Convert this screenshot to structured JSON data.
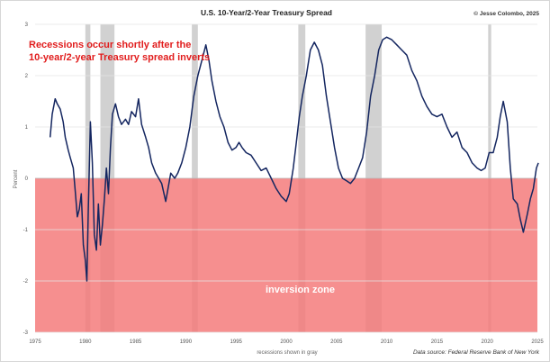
{
  "chart_data": {
    "type": "line",
    "title": "U.S. 10-Year/2-Year Treasury Spread",
    "credit": "© Jesse Colombo, 2025",
    "annotation": "Recessions occur shortly after the\n10-year/2-year Treasury spread inverts",
    "inversion_label": "inversion zone",
    "xlabel": "recessions shown in gray",
    "ylabel": "Percent",
    "source": "Data source: Federal Reserve Bank of New York",
    "xlim": [
      1975,
      2025
    ],
    "ylim": [
      -3,
      3
    ],
    "x_ticks": [
      "1975",
      "1980",
      "1985",
      "1990",
      "1995",
      "2000",
      "2005",
      "2010",
      "2015",
      "2020",
      "2025"
    ],
    "y_ticks": [
      "3",
      "2",
      "1",
      "0",
      "-1",
      "-2",
      "-3"
    ],
    "grid": true,
    "inversion_zone": [
      0,
      -3
    ],
    "recessions": [
      [
        1980.0,
        1980.5
      ],
      [
        1981.5,
        1982.9
      ],
      [
        1990.6,
        1991.2
      ],
      [
        2001.2,
        2001.9
      ],
      [
        2007.9,
        2009.5
      ],
      [
        2020.1,
        2020.4
      ]
    ],
    "series": [
      {
        "color": "#142660",
        "x": [
          1976.5,
          1976.7,
          1977.0,
          1977.2,
          1977.5,
          1977.8,
          1978.0,
          1978.3,
          1978.5,
          1978.8,
          1979.0,
          1979.2,
          1979.4,
          1979.6,
          1979.8,
          1980.0,
          1980.15,
          1980.3,
          1980.5,
          1980.7,
          1980.9,
          1981.1,
          1981.3,
          1981.5,
          1981.7,
          1981.9,
          1982.1,
          1982.3,
          1982.5,
          1982.7,
          1983.0,
          1983.3,
          1983.6,
          1984.0,
          1984.3,
          1984.6,
          1985.0,
          1985.3,
          1985.6,
          1986.0,
          1986.3,
          1986.6,
          1987.0,
          1987.3,
          1987.6,
          1988.0,
          1988.5,
          1988.9,
          1989.2,
          1989.6,
          1990.0,
          1990.4,
          1990.8,
          1991.2,
          1991.6,
          1992.0,
          1992.3,
          1992.6,
          1993.0,
          1993.4,
          1993.8,
          1994.2,
          1994.6,
          1995.0,
          1995.3,
          1995.6,
          1996.0,
          1996.5,
          1997.0,
          1997.5,
          1998.0,
          1998.5,
          1999.0,
          1999.5,
          2000.0,
          2000.3,
          2000.7,
          2001.0,
          2001.3,
          2001.6,
          2002.0,
          2002.4,
          2002.8,
          2003.2,
          2003.6,
          2004.0,
          2004.4,
          2004.8,
          2005.2,
          2005.6,
          2006.0,
          2006.4,
          2006.8,
          2007.2,
          2007.6,
          2008.0,
          2008.4,
          2008.8,
          2009.2,
          2009.6,
          2010.0,
          2010.5,
          2011.0,
          2011.5,
          2012.0,
          2012.5,
          2013.0,
          2013.5,
          2014.0,
          2014.5,
          2015.0,
          2015.5,
          2016.0,
          2016.5,
          2017.0,
          2017.5,
          2018.0,
          2018.5,
          2019.0,
          2019.4,
          2019.8,
          2020.2,
          2020.6,
          2021.0,
          2021.3,
          2021.6,
          2022.0,
          2022.3,
          2022.6,
          2023.0,
          2023.3,
          2023.6,
          2024.0,
          2024.3,
          2024.6,
          2024.9,
          2025.1
        ],
        "values": [
          0.8,
          1.25,
          1.55,
          1.45,
          1.35,
          1.1,
          0.8,
          0.55,
          0.4,
          0.2,
          -0.25,
          -0.75,
          -0.6,
          -0.3,
          -1.3,
          -1.6,
          -2.0,
          -0.6,
          1.1,
          0.3,
          -1.1,
          -1.4,
          -0.5,
          -1.3,
          -0.9,
          -0.4,
          0.2,
          -0.3,
          0.6,
          1.25,
          1.45,
          1.2,
          1.05,
          1.15,
          1.05,
          1.3,
          1.2,
          1.55,
          1.05,
          0.8,
          0.6,
          0.3,
          0.1,
          0.0,
          -0.1,
          -0.45,
          0.1,
          0.0,
          0.1,
          0.3,
          0.6,
          1.0,
          1.6,
          2.0,
          2.3,
          2.6,
          2.3,
          1.9,
          1.5,
          1.2,
          1.0,
          0.7,
          0.55,
          0.6,
          0.7,
          0.6,
          0.5,
          0.45,
          0.3,
          0.15,
          0.2,
          0.0,
          -0.2,
          -0.35,
          -0.45,
          -0.3,
          0.2,
          0.7,
          1.2,
          1.6,
          2.0,
          2.5,
          2.65,
          2.5,
          2.2,
          1.6,
          1.1,
          0.6,
          0.2,
          0.0,
          -0.05,
          -0.1,
          0.0,
          0.2,
          0.4,
          0.9,
          1.6,
          2.0,
          2.5,
          2.7,
          2.75,
          2.7,
          2.6,
          2.5,
          2.4,
          2.1,
          1.9,
          1.6,
          1.4,
          1.25,
          1.2,
          1.25,
          1.0,
          0.8,
          0.9,
          0.6,
          0.5,
          0.3,
          0.2,
          0.15,
          0.2,
          0.5,
          0.5,
          0.8,
          1.2,
          1.5,
          1.1,
          0.2,
          -0.4,
          -0.5,
          -0.8,
          -1.05,
          -0.7,
          -0.4,
          -0.2,
          0.2,
          0.3
        ]
      }
    ]
  }
}
